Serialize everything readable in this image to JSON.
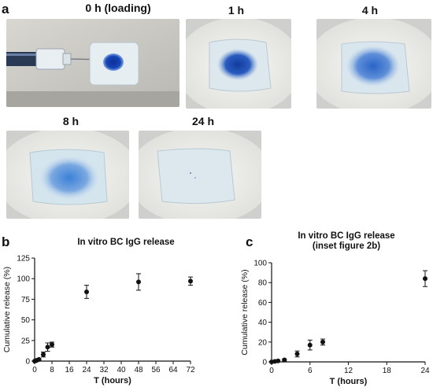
{
  "figure": {
    "panel_a": {
      "letter": "a"
    },
    "panel_b": {
      "letter": "b"
    },
    "panel_c": {
      "letter": "c"
    },
    "photos": [
      {
        "label": "0 h (loading)"
      },
      {
        "label": "1 h"
      },
      {
        "label": "4 h"
      },
      {
        "label": "8 h"
      },
      {
        "label": "24 h"
      }
    ],
    "colors": {
      "dye": "#1a4fb8",
      "gel": "#dfe9ee",
      "plate": "#f2f2f0",
      "marker": "#111111"
    }
  },
  "chart_data": [
    {
      "type": "scatter",
      "title": "In vitro BC IgG release",
      "xlabel": "T (hours)",
      "ylabel": "Cumulative release (%)",
      "xlim": [
        0,
        72
      ],
      "ylim": [
        0,
        125
      ],
      "xticks": [
        0,
        8,
        16,
        24,
        32,
        40,
        48,
        56,
        64,
        72
      ],
      "yticks": [
        0,
        25,
        50,
        75,
        100,
        125
      ],
      "grid": false,
      "x": [
        0,
        0.5,
        1,
        2,
        4,
        6,
        8,
        24,
        48,
        72
      ],
      "y": [
        0,
        0.5,
        1,
        2,
        8,
        17,
        20,
        84,
        96,
        97
      ],
      "yerr": [
        0.5,
        0.5,
        0.8,
        1,
        3,
        5,
        3,
        8,
        10,
        5
      ]
    },
    {
      "type": "scatter",
      "title": "In vitro BC IgG release (inset figure 2b)",
      "title_lines": [
        "In vitro BC IgG release",
        "(inset figure 2b)"
      ],
      "xlabel": "T (hours)",
      "ylabel": "Cumulative release (%)",
      "xlim": [
        0,
        24
      ],
      "ylim": [
        0,
        100
      ],
      "xticks": [
        0,
        6,
        12,
        18,
        24
      ],
      "yticks": [
        0,
        20,
        40,
        60,
        80,
        100
      ],
      "grid": false,
      "x": [
        0,
        0.5,
        1,
        2,
        4,
        6,
        8,
        24
      ],
      "y": [
        0,
        0.5,
        1,
        2,
        8,
        17,
        20,
        84
      ],
      "yerr": [
        0.5,
        0.5,
        0.8,
        1,
        3,
        5,
        3,
        8
      ]
    }
  ]
}
